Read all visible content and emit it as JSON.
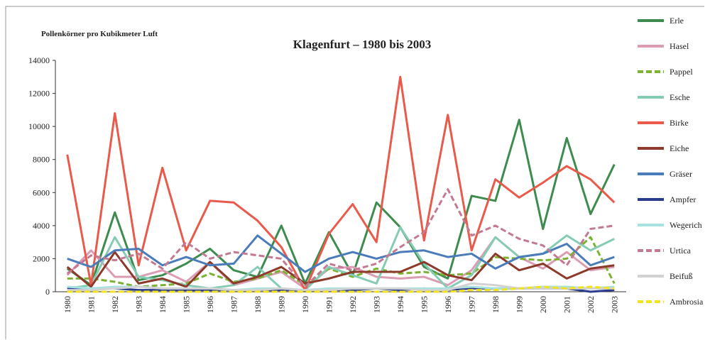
{
  "chart_data": {
    "type": "line",
    "title": "Klagenfurt – 1980 bis 2003",
    "ylabel": "Pollenkörner pro Kubikmeter Luft",
    "categories": [
      "1980",
      "1981",
      "1982",
      "1983",
      "1984",
      "1985",
      "1986",
      "1987",
      "1988",
      "1989",
      "1990",
      "1991",
      "1992",
      "1993",
      "1994",
      "1995",
      "1996",
      "1997",
      "1998",
      "1999",
      "2000",
      "2001",
      "2002",
      "2003"
    ],
    "ylim": [
      0,
      14000
    ],
    "yticks": [
      0,
      2000,
      4000,
      6000,
      8000,
      10000,
      12000,
      14000
    ],
    "legend": "right",
    "series": [
      {
        "name": "Erle",
        "color": "#3d8c4e",
        "values": [
          1400,
          400,
          4800,
          700,
          1000,
          1700,
          2600,
          1300,
          900,
          4000,
          500,
          3600,
          1000,
          5400,
          3900,
          1500,
          800,
          5800,
          5500,
          10400,
          3800,
          9300,
          4700,
          7700
        ]
      },
      {
        "name": "Hasel",
        "color": "#dc9cb4",
        "values": [
          1000,
          2500,
          900,
          900,
          1300,
          600,
          1800,
          400,
          800,
          1200,
          200,
          1400,
          1500,
          900,
          800,
          900,
          400,
          1300,
          3300,
          2100,
          1400,
          2400,
          1300,
          1500
        ]
      },
      {
        "name": "Pappel",
        "color": "#7cb232",
        "dashed": true,
        "values": [
          800,
          800,
          600,
          300,
          400,
          500,
          1100,
          600,
          800,
          1300,
          400,
          1400,
          900,
          1400,
          1100,
          1200,
          1000,
          1100,
          2100,
          2000,
          1900,
          2000,
          3300,
          500
        ]
      },
      {
        "name": "Esche",
        "color": "#86ccb4",
        "values": [
          200,
          400,
          3300,
          900,
          700,
          400,
          200,
          400,
          1500,
          200,
          100,
          1500,
          1000,
          500,
          3900,
          1700,
          200,
          1000,
          3300,
          2100,
          2300,
          3400,
          2500,
          3200
        ]
      },
      {
        "name": "Birke",
        "color": "#ea5a4a",
        "values": [
          8300,
          400,
          10800,
          1600,
          7500,
          2500,
          5500,
          5400,
          4300,
          2700,
          100,
          3500,
          5300,
          3000,
          13000,
          3100,
          10700,
          2500,
          6800,
          5700,
          6600,
          7600,
          6800,
          5400
        ]
      },
      {
        "name": "Eiche",
        "color": "#8c3a2a",
        "values": [
          1500,
          300,
          2400,
          500,
          800,
          300,
          1800,
          500,
          900,
          1500,
          500,
          800,
          1200,
          1200,
          1200,
          1800,
          1000,
          700,
          2300,
          1300,
          1700,
          800,
          1400,
          1600
        ]
      },
      {
        "name": "Gräser",
        "color": "#4a7cba",
        "values": [
          2000,
          1500,
          2500,
          2600,
          1600,
          2100,
          1600,
          1700,
          3400,
          2300,
          1200,
          2000,
          2400,
          2000,
          2400,
          2500,
          2100,
          2300,
          1400,
          2100,
          2300,
          2900,
          1600,
          2100
        ]
      },
      {
        "name": "Ampfer",
        "color": "#2a3c8c",
        "values": [
          200,
          200,
          200,
          100,
          100,
          100,
          100,
          100,
          100,
          100,
          100,
          100,
          100,
          200,
          100,
          200,
          100,
          200,
          200,
          200,
          200,
          200,
          0,
          100
        ]
      },
      {
        "name": "Wegerich",
        "color": "#a8e2e0",
        "values": [
          300,
          200,
          300,
          300,
          200,
          200,
          200,
          100,
          200,
          200,
          100,
          200,
          200,
          200,
          200,
          200,
          200,
          300,
          200,
          200,
          300,
          300,
          200,
          300
        ]
      },
      {
        "name": "Urtica",
        "color": "#c27a92",
        "dashed": true,
        "values": [
          1100,
          2200,
          1900,
          2300,
          1400,
          3000,
          2000,
          2400,
          2200,
          2000,
          300,
          1700,
          1300,
          1700,
          2700,
          3600,
          6200,
          3400,
          4000,
          3200,
          2800,
          1600,
          3800,
          4000
        ]
      },
      {
        "name": "Beifuß",
        "color": "#d2d2d2",
        "values": [
          100,
          100,
          200,
          300,
          200,
          200,
          200,
          100,
          100,
          200,
          100,
          100,
          200,
          200,
          200,
          100,
          100,
          500,
          400,
          200,
          200,
          200,
          200,
          200
        ]
      },
      {
        "name": "Ambrosia",
        "color": "#f2e222",
        "dashed": true,
        "values": [
          0,
          0,
          0,
          0,
          0,
          0,
          0,
          0,
          0,
          0,
          0,
          0,
          0,
          0,
          0,
          0,
          0,
          100,
          100,
          200,
          300,
          200,
          300,
          200
        ]
      }
    ]
  }
}
